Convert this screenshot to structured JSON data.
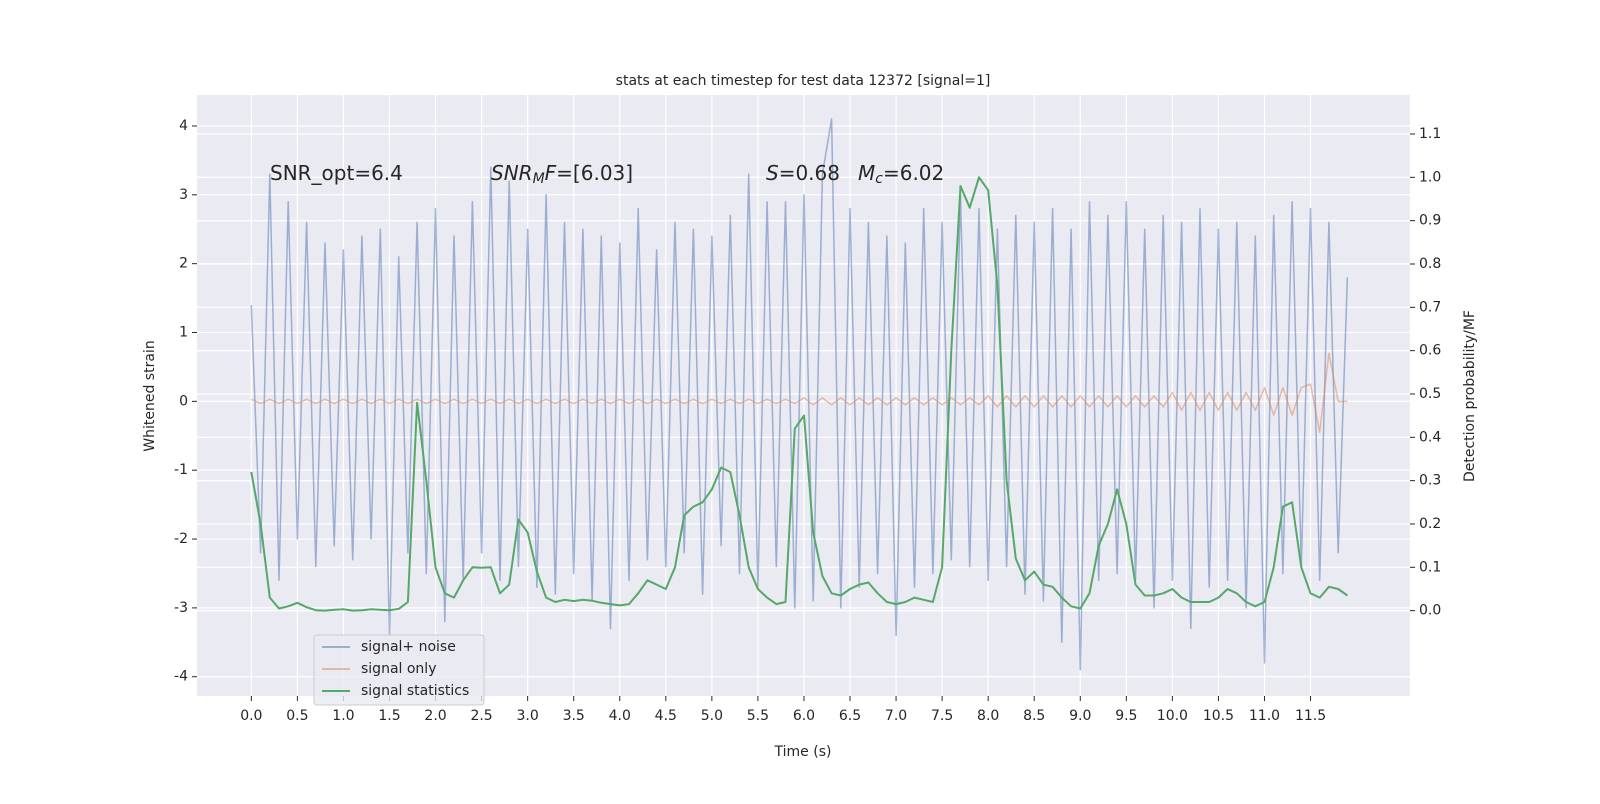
{
  "chart_data": {
    "type": "line",
    "title": "stats at each timestep for test data 12372 [signal=1]",
    "xlabel": "Time (s)",
    "ylabel": "Whitened strain",
    "y2label": "Detection probability/MF",
    "annotations": [
      {
        "parts": [
          {
            "text": "SNR_opt=6.4",
            "style": "normal"
          }
        ]
      },
      {
        "parts": [
          {
            "text": "SNR",
            "style": "italic"
          },
          {
            "text": "M",
            "style": "italic-sub"
          },
          {
            "text": "F",
            "style": "italic"
          },
          {
            "text": "=[6.03]",
            "style": "normal"
          }
        ]
      },
      {
        "parts": [
          {
            "text": "S",
            "style": "italic"
          },
          {
            "text": "=0.68",
            "style": "normal"
          }
        ]
      },
      {
        "parts": [
          {
            "text": "M",
            "style": "italic"
          },
          {
            "text": "c",
            "style": "italic-sub"
          },
          {
            "text": "=6.02",
            "style": "normal"
          }
        ]
      }
    ],
    "xlim": [
      -0.59,
      12.58
    ],
    "ylim": [
      -4.28,
      4.45
    ],
    "y2lim": [
      -0.197,
      1.19
    ],
    "xticks": [
      {
        "value": 0,
        "label": "0.0"
      },
      0.5,
      {
        "value": 1,
        "label": "1.0"
      },
      1.5,
      {
        "value": 2,
        "label": "2.0"
      },
      2.5,
      {
        "value": 3,
        "label": "3.0"
      },
      3.5,
      {
        "value": 4,
        "label": "4.0"
      },
      4.5,
      {
        "value": 5,
        "label": "5.0"
      },
      5.5,
      {
        "value": 6,
        "label": "6.0"
      },
      6.5,
      {
        "value": 7,
        "label": "7.0"
      },
      7.5,
      {
        "value": 8,
        "label": "8.0"
      },
      8.5,
      {
        "value": 9,
        "label": "9.0"
      },
      9.5,
      {
        "value": 10,
        "label": "10.0"
      },
      10.5,
      {
        "value": 11,
        "label": "11.0"
      },
      11.5
    ],
    "yticks": [
      -4,
      -3,
      -2,
      -1,
      0,
      1,
      2,
      3,
      4
    ],
    "y2ticks": [
      {
        "value": 0,
        "label": "0.0"
      },
      0.1,
      0.2,
      0.3,
      0.4,
      0.5,
      0.6,
      0.7,
      0.8,
      0.9,
      {
        "value": 1,
        "label": "1.0"
      },
      1.1
    ],
    "grid": true,
    "legend": "lower left",
    "x": [
      0,
      0.1,
      0.2,
      0.3,
      0.4,
      0.5,
      0.6,
      0.7,
      0.8,
      0.9,
      1,
      1.1,
      1.2,
      1.3,
      1.4,
      1.5,
      1.6,
      1.7,
      1.8,
      1.9,
      2,
      2.1,
      2.2,
      2.3,
      2.4,
      2.5,
      2.6,
      2.7,
      2.8,
      2.9,
      3,
      3.1,
      3.2,
      3.3,
      3.4,
      3.5,
      3.6,
      3.7,
      3.8,
      3.9,
      4,
      4.1,
      4.2,
      4.3,
      4.4,
      4.5,
      4.6,
      4.7,
      4.8,
      4.9,
      5,
      5.1,
      5.2,
      5.3,
      5.4,
      5.5,
      5.6,
      5.7,
      5.8,
      5.9,
      6,
      6.1,
      6.2,
      6.3,
      6.4,
      6.5,
      6.6,
      6.7,
      6.8,
      6.9,
      7,
      7.1,
      7.2,
      7.3,
      7.4,
      7.5,
      7.6,
      7.7,
      7.8,
      7.9,
      8,
      8.1,
      8.2,
      8.3,
      8.4,
      8.5,
      8.6,
      8.7,
      8.8,
      8.9,
      9,
      9.1,
      9.2,
      9.3,
      9.4,
      9.5,
      9.6,
      9.7,
      9.8,
      9.9,
      10,
      10.1,
      10.2,
      10.3,
      10.4,
      10.5,
      10.6,
      10.7,
      10.8,
      10.9,
      11,
      11.1,
      11.2,
      11.3,
      11.4,
      11.5,
      11.6,
      11.7,
      11.8,
      11.9
    ],
    "series": [
      {
        "name": "signal+ noise",
        "color": "#4c72b0",
        "alpha": 0.5,
        "axis": "y",
        "values": [
          1.4,
          -2.2,
          3.3,
          -2.6,
          2.9,
          -2.0,
          2.6,
          -2.4,
          2.3,
          -2.1,
          2.2,
          -2.3,
          2.4,
          -2.0,
          2.5,
          -3.4,
          2.1,
          -2.2,
          2.6,
          -2.5,
          2.8,
          -3.2,
          2.4,
          -2.6,
          2.9,
          -2.2,
          3.4,
          -2.6,
          3.2,
          -2.4,
          2.5,
          -2.7,
          3.0,
          -2.8,
          2.6,
          -2.5,
          2.5,
          -2.9,
          2.4,
          -3.3,
          2.3,
          -2.6,
          2.8,
          -2.3,
          2.2,
          -2.4,
          2.6,
          -2.2,
          2.5,
          -2.8,
          2.4,
          -2.1,
          2.7,
          -2.5,
          3.3,
          -2.7,
          2.9,
          -2.4,
          2.9,
          -3.0,
          3.0,
          -2.9,
          3.3,
          4.1,
          -3.0,
          2.8,
          -2.7,
          2.6,
          -2.5,
          2.4,
          -3.4,
          2.3,
          -2.7,
          2.8,
          -2.5,
          2.6,
          -2.3,
          3.0,
          -2.4,
          2.8,
          -2.6,
          2.5,
          -2.4,
          2.7,
          -2.8,
          2.6,
          -2.9,
          2.8,
          -3.5,
          2.5,
          -3.9,
          2.9,
          -2.6,
          2.7,
          -2.5,
          2.9,
          -2.6,
          2.5,
          -3.0,
          2.7,
          -2.6,
          2.6,
          -3.3,
          2.8,
          -2.7,
          2.5,
          -2.6,
          2.6,
          -3.0,
          2.4,
          -3.8,
          2.7,
          -2.5,
          2.9,
          -2.4,
          2.8,
          -2.6,
          2.6,
          -2.2,
          1.8
        ]
      },
      {
        "name": "signal only",
        "color": "#dd8452",
        "alpha": 0.5,
        "axis": "y",
        "values": [
          0.03,
          -0.03,
          0.03,
          -0.03,
          0.03,
          -0.03,
          0.03,
          -0.03,
          0.03,
          -0.03,
          0.03,
          -0.03,
          0.03,
          -0.03,
          0.03,
          -0.03,
          0.03,
          -0.03,
          0.03,
          -0.03,
          0.03,
          -0.03,
          0.03,
          -0.03,
          0.03,
          -0.03,
          0.03,
          -0.03,
          0.03,
          -0.03,
          0.03,
          -0.03,
          0.03,
          -0.03,
          0.03,
          -0.03,
          0.03,
          -0.03,
          0.03,
          -0.03,
          0.03,
          -0.03,
          0.03,
          -0.03,
          0.03,
          -0.03,
          0.03,
          -0.03,
          0.03,
          -0.03,
          0.03,
          -0.03,
          0.03,
          -0.03,
          0.03,
          -0.03,
          0.03,
          -0.03,
          0.03,
          -0.03,
          0.05,
          -0.05,
          0.05,
          -0.05,
          0.05,
          -0.05,
          0.05,
          -0.05,
          0.05,
          -0.05,
          0.05,
          -0.05,
          0.05,
          -0.05,
          0.05,
          -0.05,
          0.05,
          -0.05,
          0.05,
          -0.05,
          0.08,
          -0.08,
          0.08,
          -0.08,
          0.08,
          -0.08,
          0.08,
          -0.08,
          0.08,
          -0.08,
          0.08,
          -0.08,
          0.08,
          -0.08,
          0.08,
          -0.08,
          0.08,
          -0.08,
          0.08,
          -0.08,
          0.13,
          -0.13,
          0.13,
          -0.13,
          0.13,
          -0.13,
          0.13,
          -0.13,
          0.13,
          -0.13,
          0.2,
          -0.2,
          0.2,
          -0.2,
          0.2,
          0.25,
          -0.45,
          0.7,
          0.0,
          0.0
        ]
      },
      {
        "name": "signal statistics",
        "color": "#55a868",
        "alpha": 1,
        "axis": "y2",
        "values": [
          0.32,
          0.2,
          0.03,
          0.005,
          0.01,
          0.018,
          0.008,
          0.001,
          0.0,
          0.002,
          0.003,
          0.0,
          0.001,
          0.003,
          0.002,
          0.001,
          0.004,
          0.02,
          0.48,
          0.3,
          0.1,
          0.04,
          0.03,
          0.07,
          0.1,
          0.099,
          0.1,
          0.04,
          0.06,
          0.21,
          0.18,
          0.09,
          0.03,
          0.02,
          0.025,
          0.022,
          0.025,
          0.023,
          0.018,
          0.015,
          0.012,
          0.015,
          0.04,
          0.07,
          0.06,
          0.05,
          0.1,
          0.22,
          0.24,
          0.25,
          0.28,
          0.33,
          0.32,
          0.22,
          0.1,
          0.05,
          0.03,
          0.015,
          0.02,
          0.42,
          0.45,
          0.18,
          0.08,
          0.04,
          0.035,
          0.05,
          0.06,
          0.065,
          0.04,
          0.02,
          0.015,
          0.02,
          0.03,
          0.025,
          0.02,
          0.1,
          0.6,
          0.98,
          0.93,
          1.0,
          0.97,
          0.75,
          0.3,
          0.12,
          0.07,
          0.09,
          0.06,
          0.055,
          0.03,
          0.01,
          0.005,
          0.04,
          0.15,
          0.2,
          0.28,
          0.2,
          0.06,
          0.035,
          0.035,
          0.04,
          0.05,
          0.03,
          0.02,
          0.02,
          0.02,
          0.03,
          0.05,
          0.04,
          0.02,
          0.01,
          0.02,
          0.1,
          0.24,
          0.25,
          0.1,
          0.04,
          0.03,
          0.055,
          0.05,
          0.035
        ]
      }
    ]
  }
}
